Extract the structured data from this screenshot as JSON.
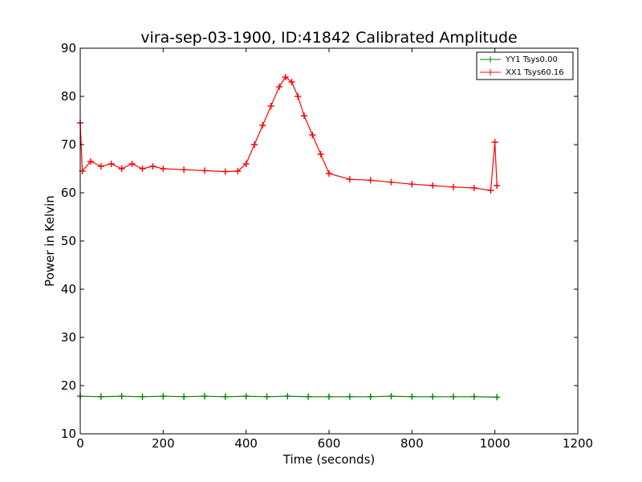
{
  "chart_data": {
    "type": "line",
    "title": "vira-sep-03-1900, ID:41842 Calibrated Amplitude",
    "xlabel": "Time (seconds)",
    "ylabel": "Power in Kelvin",
    "xlim": [
      0,
      1200
    ],
    "ylim": [
      10,
      90
    ],
    "xticks": [
      0,
      200,
      400,
      600,
      800,
      1000,
      1200
    ],
    "yticks": [
      10,
      20,
      30,
      40,
      50,
      60,
      70,
      80,
      90
    ],
    "grid": false,
    "legend_position": "top-right",
    "series": [
      {
        "name": "YY1 Tsys0.00",
        "color": "#008000",
        "marker": "+",
        "x": [
          0,
          50,
          100,
          150,
          200,
          250,
          300,
          350,
          400,
          450,
          500,
          550,
          600,
          650,
          700,
          750,
          800,
          850,
          900,
          950,
          1005
        ],
        "y": [
          17.8,
          17.7,
          17.8,
          17.7,
          17.8,
          17.7,
          17.8,
          17.7,
          17.8,
          17.7,
          17.8,
          17.7,
          17.7,
          17.7,
          17.7,
          17.8,
          17.7,
          17.7,
          17.7,
          17.7,
          17.6
        ]
      },
      {
        "name": "XX1 Tsys60.16",
        "color": "#ff0000",
        "marker": "+",
        "x": [
          0,
          5,
          25,
          50,
          75,
          100,
          125,
          150,
          175,
          200,
          250,
          300,
          350,
          380,
          400,
          420,
          440,
          460,
          480,
          495,
          510,
          525,
          540,
          560,
          580,
          600,
          650,
          700,
          750,
          800,
          850,
          900,
          950,
          990,
          1000,
          1005
        ],
        "y": [
          74.5,
          64.5,
          66.5,
          65.5,
          66.0,
          65.0,
          66.0,
          65.0,
          65.5,
          65.0,
          64.8,
          64.6,
          64.4,
          64.5,
          66.0,
          70.0,
          74.0,
          78.0,
          82.0,
          84.0,
          83.0,
          80.0,
          76.0,
          72.0,
          68.0,
          64.0,
          62.8,
          62.6,
          62.2,
          61.8,
          61.5,
          61.2,
          61.0,
          60.5,
          70.5,
          61.5
        ]
      }
    ]
  }
}
